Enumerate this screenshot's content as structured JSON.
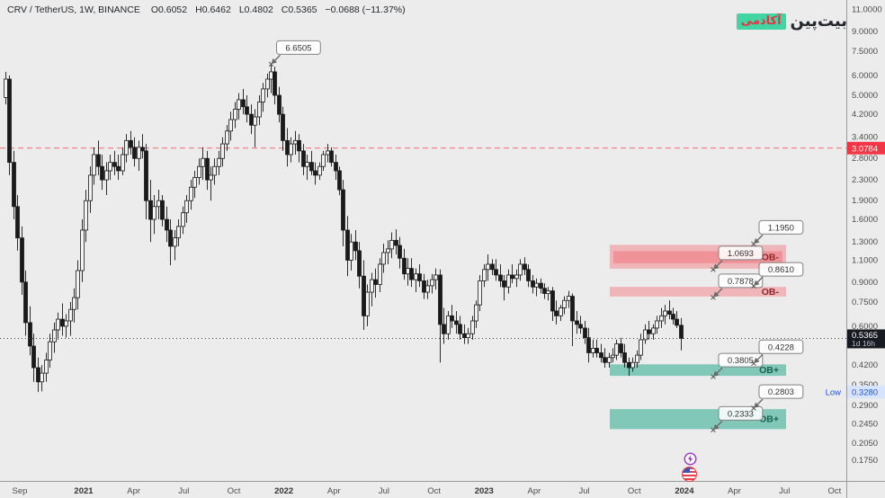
{
  "header": {
    "title": "CRV / TetherUS, 1W, BINANCE",
    "o": "O0.6052",
    "h": "H0.6462",
    "l": "L0.4802",
    "c": "C0.5365",
    "change": "−0.0688 (−11.37%)"
  },
  "logo": {
    "brand": "بیت‌پین",
    "badge": "آکادمی"
  },
  "price_axis": {
    "ticks": [
      {
        "v": 11.0,
        "label": "11.0000"
      },
      {
        "v": 9.0,
        "label": "9.0000"
      },
      {
        "v": 7.5,
        "label": "7.5000"
      },
      {
        "v": 6.0,
        "label": "6.0000"
      },
      {
        "v": 5.0,
        "label": "5.0000"
      },
      {
        "v": 4.2,
        "label": "4.2000"
      },
      {
        "v": 3.4,
        "label": "3.4000"
      },
      {
        "v": 2.8,
        "label": "2.8000"
      },
      {
        "v": 2.3,
        "label": "2.3000"
      },
      {
        "v": 1.9,
        "label": "1.9000"
      },
      {
        "v": 1.6,
        "label": "1.6000"
      },
      {
        "v": 1.3,
        "label": "1.3000"
      },
      {
        "v": 1.1,
        "label": "1.1000"
      },
      {
        "v": 0.9,
        "label": "0.9000"
      },
      {
        "v": 0.75,
        "label": "0.7500"
      },
      {
        "v": 0.6,
        "label": "0.6000"
      },
      {
        "v": 0.42,
        "label": "0.4200"
      },
      {
        "v": 0.35,
        "label": "0.3500"
      },
      {
        "v": 0.29,
        "label": "0.2900"
      },
      {
        "v": 0.245,
        "label": "0.2450"
      },
      {
        "v": 0.205,
        "label": "0.2050"
      },
      {
        "v": 0.175,
        "label": "0.1750"
      }
    ],
    "resistance_line": {
      "price": 3.0784,
      "label": "3.0784",
      "color": "#f23645"
    },
    "current": {
      "price": 0.5365,
      "label": "0.5365",
      "countdown": "1d 16h",
      "bg": "#171a21"
    },
    "low": {
      "price": 0.328,
      "label": "0.3280",
      "tag": "Low",
      "bg": "#d7e4fb",
      "fg": "#1e53e5"
    }
  },
  "time_axis": {
    "labels": [
      {
        "text": "Sep",
        "bold": false
      },
      {
        "text": "2021",
        "bold": true
      },
      {
        "text": "Apr",
        "bold": false
      },
      {
        "text": "Jul",
        "bold": false
      },
      {
        "text": "Oct",
        "bold": false
      },
      {
        "text": "2022",
        "bold": true
      },
      {
        "text": "Apr",
        "bold": false
      },
      {
        "text": "Jul",
        "bold": false
      },
      {
        "text": "Oct",
        "bold": false
      },
      {
        "text": "2023",
        "bold": true
      },
      {
        "text": "Apr",
        "bold": false
      },
      {
        "text": "Jul",
        "bold": false
      },
      {
        "text": "Oct",
        "bold": false
      },
      {
        "text": "2024",
        "bold": true
      },
      {
        "text": "Apr",
        "bold": false
      },
      {
        "text": "Jul",
        "bold": false
      },
      {
        "text": "Oct",
        "bold": false
      }
    ]
  },
  "chart_data": {
    "type": "candlestick",
    "symbol": "CRV/USDT",
    "interval": "1W",
    "scale": "log",
    "x_range": "Sep 2020 – Jan 2024 (weekly candles)",
    "y_range": [
      0.175,
      11.0
    ],
    "grid": false,
    "peak_callout": {
      "label": "6.6505",
      "price": 6.6505
    },
    "zones": [
      {
        "kind": "OB-",
        "label": "OB-",
        "low": 1.0693,
        "high": 1.195,
        "low_label": "1.0693",
        "high_label": "1.1950",
        "outer": true
      },
      {
        "kind": "OB-",
        "label": "OB-",
        "low": 0.7878,
        "high": 0.861,
        "low_label": "0.7878",
        "high_label": "0.8610",
        "outer": false
      },
      {
        "kind": "OB+",
        "label": "OB+",
        "low": 0.3805,
        "high": 0.4228,
        "low_label": "0.3805",
        "high_label": "0.4228",
        "outer": false
      },
      {
        "kind": "OB+",
        "label": "OB+",
        "low": 0.2333,
        "high": 0.2803,
        "low_label": "0.2333",
        "high_label": "0.2803",
        "outer": false
      }
    ],
    "candles": [
      [
        4.9,
        6.2,
        4.6,
        5.8
      ],
      [
        5.8,
        6.0,
        2.4,
        2.7
      ],
      [
        2.7,
        3.0,
        1.6,
        1.8
      ],
      [
        1.8,
        2.0,
        1.2,
        1.35
      ],
      [
        1.35,
        1.5,
        0.8,
        0.9
      ],
      [
        0.9,
        1.0,
        0.55,
        0.62
      ],
      [
        0.62,
        0.72,
        0.46,
        0.5
      ],
      [
        0.5,
        0.56,
        0.36,
        0.41
      ],
      [
        0.41,
        0.45,
        0.328,
        0.36
      ],
      [
        0.36,
        0.42,
        0.33,
        0.39
      ],
      [
        0.39,
        0.47,
        0.36,
        0.44
      ],
      [
        0.44,
        0.56,
        0.41,
        0.52
      ],
      [
        0.52,
        0.62,
        0.47,
        0.58
      ],
      [
        0.58,
        0.68,
        0.53,
        0.64
      ],
      [
        0.64,
        0.74,
        0.55,
        0.6
      ],
      [
        0.6,
        0.67,
        0.54,
        0.63
      ],
      [
        0.63,
        0.75,
        0.55,
        0.7
      ],
      [
        0.7,
        0.85,
        0.62,
        0.78
      ],
      [
        0.78,
        1.1,
        0.7,
        1.0
      ],
      [
        1.0,
        1.6,
        0.9,
        1.45
      ],
      [
        1.45,
        2.1,
        1.3,
        1.9
      ],
      [
        1.9,
        2.6,
        1.7,
        2.4
      ],
      [
        2.4,
        3.1,
        2.2,
        2.9
      ],
      [
        2.9,
        3.3,
        2.4,
        2.6
      ],
      [
        2.6,
        2.9,
        2.1,
        2.3
      ],
      [
        2.3,
        2.7,
        2.0,
        2.5
      ],
      [
        2.5,
        2.9,
        2.3,
        2.7
      ],
      [
        2.7,
        3.0,
        2.4,
        2.6
      ],
      [
        2.6,
        2.9,
        2.3,
        2.5
      ],
      [
        2.5,
        3.1,
        2.4,
        2.9
      ],
      [
        2.9,
        3.5,
        2.7,
        3.3
      ],
      [
        3.3,
        3.6,
        2.9,
        3.1
      ],
      [
        3.1,
        3.4,
        2.6,
        2.8
      ],
      [
        2.8,
        3.3,
        2.5,
        3.1
      ],
      [
        3.1,
        3.5,
        2.8,
        3.0
      ],
      [
        3.0,
        3.2,
        1.6,
        1.9
      ],
      [
        1.9,
        2.3,
        1.3,
        1.6
      ],
      [
        1.6,
        2.0,
        1.4,
        1.8
      ],
      [
        1.8,
        2.1,
        1.6,
        1.9
      ],
      [
        1.9,
        2.0,
        1.5,
        1.6
      ],
      [
        1.6,
        1.8,
        1.3,
        1.45
      ],
      [
        1.45,
        1.6,
        1.05,
        1.25
      ],
      [
        1.25,
        1.45,
        1.1,
        1.35
      ],
      [
        1.35,
        1.6,
        1.25,
        1.5
      ],
      [
        1.5,
        1.8,
        1.4,
        1.7
      ],
      [
        1.7,
        2.0,
        1.55,
        1.9
      ],
      [
        1.9,
        2.3,
        1.75,
        2.15
      ],
      [
        2.15,
        2.5,
        1.95,
        2.35
      ],
      [
        2.35,
        2.8,
        2.2,
        2.6
      ],
      [
        2.6,
        3.1,
        2.3,
        2.8
      ],
      [
        2.8,
        3.0,
        2.1,
        2.3
      ],
      [
        2.3,
        2.6,
        1.9,
        2.4
      ],
      [
        2.4,
        2.8,
        2.2,
        2.6
      ],
      [
        2.6,
        3.0,
        2.4,
        2.8
      ],
      [
        2.8,
        3.4,
        2.6,
        3.2
      ],
      [
        3.2,
        3.8,
        3.0,
        3.6
      ],
      [
        3.6,
        4.3,
        3.3,
        4.0
      ],
      [
        4.0,
        4.7,
        3.7,
        4.4
      ],
      [
        4.4,
        5.1,
        4.0,
        4.8
      ],
      [
        4.8,
        5.3,
        4.2,
        4.5
      ],
      [
        4.5,
        5.0,
        3.9,
        4.2
      ],
      [
        4.2,
        4.6,
        3.5,
        3.8
      ],
      [
        3.8,
        4.4,
        3.1,
        4.1
      ],
      [
        4.1,
        5.0,
        3.8,
        4.7
      ],
      [
        4.7,
        5.6,
        4.3,
        5.3
      ],
      [
        5.3,
        6.1,
        4.9,
        5.8
      ],
      [
        5.8,
        6.6505,
        5.1,
        6.2
      ],
      [
        6.2,
        6.5,
        4.6,
        5.0
      ],
      [
        5.0,
        5.4,
        3.9,
        4.2
      ],
      [
        4.2,
        4.5,
        3.0,
        3.3
      ],
      [
        3.3,
        3.7,
        2.6,
        2.9
      ],
      [
        2.9,
        3.4,
        2.7,
        3.2
      ],
      [
        3.2,
        3.6,
        2.9,
        3.3
      ],
      [
        3.3,
        3.5,
        2.7,
        3.0
      ],
      [
        3.0,
        3.2,
        2.4,
        2.6
      ],
      [
        2.6,
        2.9,
        2.3,
        2.7
      ],
      [
        2.7,
        3.0,
        2.4,
        2.5
      ],
      [
        2.5,
        2.7,
        2.2,
        2.4
      ],
      [
        2.4,
        2.7,
        2.3,
        2.6
      ],
      [
        2.6,
        3.0,
        2.5,
        2.9
      ],
      [
        2.9,
        3.2,
        2.7,
        3.0
      ],
      [
        3.0,
        3.1,
        2.6,
        2.7
      ],
      [
        2.7,
        2.9,
        2.3,
        2.5
      ],
      [
        2.5,
        2.6,
        2.0,
        2.1
      ],
      [
        2.1,
        2.3,
        1.25,
        1.45
      ],
      [
        1.45,
        1.65,
        0.95,
        1.1
      ],
      [
        1.1,
        1.4,
        1.0,
        1.3
      ],
      [
        1.3,
        1.45,
        1.1,
        1.2
      ],
      [
        1.2,
        1.3,
        0.85,
        0.95
      ],
      [
        0.95,
        1.1,
        0.58,
        0.66
      ],
      [
        0.66,
        0.88,
        0.6,
        0.82
      ],
      [
        0.82,
        0.98,
        0.72,
        0.92
      ],
      [
        0.92,
        1.02,
        0.78,
        0.88
      ],
      [
        0.88,
        1.12,
        0.82,
        1.06
      ],
      [
        1.06,
        1.28,
        0.98,
        1.18
      ],
      [
        1.18,
        1.32,
        1.06,
        1.22
      ],
      [
        1.22,
        1.42,
        1.12,
        1.32
      ],
      [
        1.32,
        1.46,
        1.16,
        1.26
      ],
      [
        1.26,
        1.36,
        1.02,
        1.12
      ],
      [
        1.12,
        1.22,
        0.92,
        0.97
      ],
      [
        0.97,
        1.12,
        0.87,
        1.02
      ],
      [
        1.02,
        1.12,
        0.86,
        0.92
      ],
      [
        0.92,
        1.02,
        0.82,
        0.97
      ],
      [
        0.97,
        1.06,
        0.86,
        0.91
      ],
      [
        0.91,
        0.97,
        0.77,
        0.82
      ],
      [
        0.82,
        0.92,
        0.77,
        0.87
      ],
      [
        0.87,
        0.97,
        0.81,
        0.92
      ],
      [
        0.92,
        1.02,
        0.84,
        0.96
      ],
      [
        0.96,
        1.01,
        0.43,
        0.61
      ],
      [
        0.61,
        0.71,
        0.51,
        0.56
      ],
      [
        0.56,
        0.69,
        0.53,
        0.66
      ],
      [
        0.66,
        0.73,
        0.59,
        0.63
      ],
      [
        0.63,
        0.69,
        0.56,
        0.61
      ],
      [
        0.61,
        0.66,
        0.53,
        0.56
      ],
      [
        0.56,
        0.61,
        0.51,
        0.54
      ],
      [
        0.54,
        0.59,
        0.51,
        0.56
      ],
      [
        0.56,
        0.66,
        0.53,
        0.63
      ],
      [
        0.63,
        0.76,
        0.59,
        0.73
      ],
      [
        0.73,
        0.96,
        0.69,
        0.91
      ],
      [
        0.91,
        1.06,
        0.86,
        1.01
      ],
      [
        1.01,
        1.16,
        0.91,
        1.06
      ],
      [
        1.06,
        1.11,
        0.96,
        1.01
      ],
      [
        1.01,
        1.11,
        0.91,
        0.96
      ],
      [
        0.96,
        1.06,
        0.86,
        0.91
      ],
      [
        0.91,
        0.96,
        0.76,
        0.86
      ],
      [
        0.86,
        1.01,
        0.81,
        0.96
      ],
      [
        0.96,
        1.06,
        0.89,
        0.93
      ],
      [
        0.93,
        1.01,
        0.86,
        0.96
      ],
      [
        0.96,
        1.11,
        0.91,
        1.06
      ],
      [
        1.06,
        1.13,
        0.96,
        1.01
      ],
      [
        1.01,
        1.06,
        0.86,
        0.91
      ],
      [
        0.91,
        0.96,
        0.81,
        0.86
      ],
      [
        0.86,
        0.93,
        0.79,
        0.89
      ],
      [
        0.89,
        0.93,
        0.81,
        0.85
      ],
      [
        0.85,
        0.89,
        0.77,
        0.81
      ],
      [
        0.81,
        0.86,
        0.76,
        0.83
      ],
      [
        0.83,
        0.86,
        0.63,
        0.69
      ],
      [
        0.69,
        0.76,
        0.61,
        0.66
      ],
      [
        0.66,
        0.73,
        0.63,
        0.71
      ],
      [
        0.71,
        0.79,
        0.67,
        0.76
      ],
      [
        0.76,
        0.83,
        0.71,
        0.79
      ],
      [
        0.79,
        0.81,
        0.5,
        0.63
      ],
      [
        0.63,
        0.69,
        0.56,
        0.61
      ],
      [
        0.61,
        0.66,
        0.56,
        0.59
      ],
      [
        0.59,
        0.63,
        0.51,
        0.54
      ],
      [
        0.54,
        0.59,
        0.43,
        0.47
      ],
      [
        0.47,
        0.53,
        0.45,
        0.49
      ],
      [
        0.49,
        0.53,
        0.45,
        0.47
      ],
      [
        0.47,
        0.51,
        0.43,
        0.45
      ],
      [
        0.45,
        0.49,
        0.41,
        0.43
      ],
      [
        0.43,
        0.47,
        0.41,
        0.45
      ],
      [
        0.45,
        0.49,
        0.43,
        0.46
      ],
      [
        0.46,
        0.53,
        0.44,
        0.51
      ],
      [
        0.51,
        0.54,
        0.45,
        0.47
      ],
      [
        0.47,
        0.51,
        0.41,
        0.43
      ],
      [
        0.43,
        0.45,
        0.3805,
        0.41
      ],
      [
        0.41,
        0.45,
        0.395,
        0.43
      ],
      [
        0.43,
        0.48,
        0.41,
        0.46
      ],
      [
        0.46,
        0.56,
        0.44,
        0.53
      ],
      [
        0.53,
        0.61,
        0.51,
        0.58
      ],
      [
        0.58,
        0.63,
        0.53,
        0.56
      ],
      [
        0.56,
        0.61,
        0.53,
        0.59
      ],
      [
        0.59,
        0.66,
        0.56,
        0.63
      ],
      [
        0.63,
        0.71,
        0.59,
        0.66
      ],
      [
        0.66,
        0.73,
        0.61,
        0.69
      ],
      [
        0.69,
        0.76,
        0.64,
        0.67
      ],
      [
        0.67,
        0.71,
        0.61,
        0.64
      ],
      [
        0.64,
        0.69,
        0.59,
        0.6052
      ],
      [
        0.6052,
        0.6462,
        0.4802,
        0.5365
      ]
    ]
  },
  "colors": {
    "background": "#ececec",
    "candle": "#1a1a1a",
    "ob_minus_fill": "rgba(244,116,124,0.45)",
    "ob_minus_inner": "rgba(240,74,86,0.32)",
    "ob_minus_text": "#8f262c",
    "ob_plus_fill": "rgba(58,176,150,0.6)",
    "ob_plus_text": "#19604f",
    "resistance_red": "#f7525f",
    "axis_text": "#4d4d4d"
  },
  "markers": [
    {
      "name": "lightning-idea-marker"
    },
    {
      "name": "flag-event-marker"
    }
  ]
}
